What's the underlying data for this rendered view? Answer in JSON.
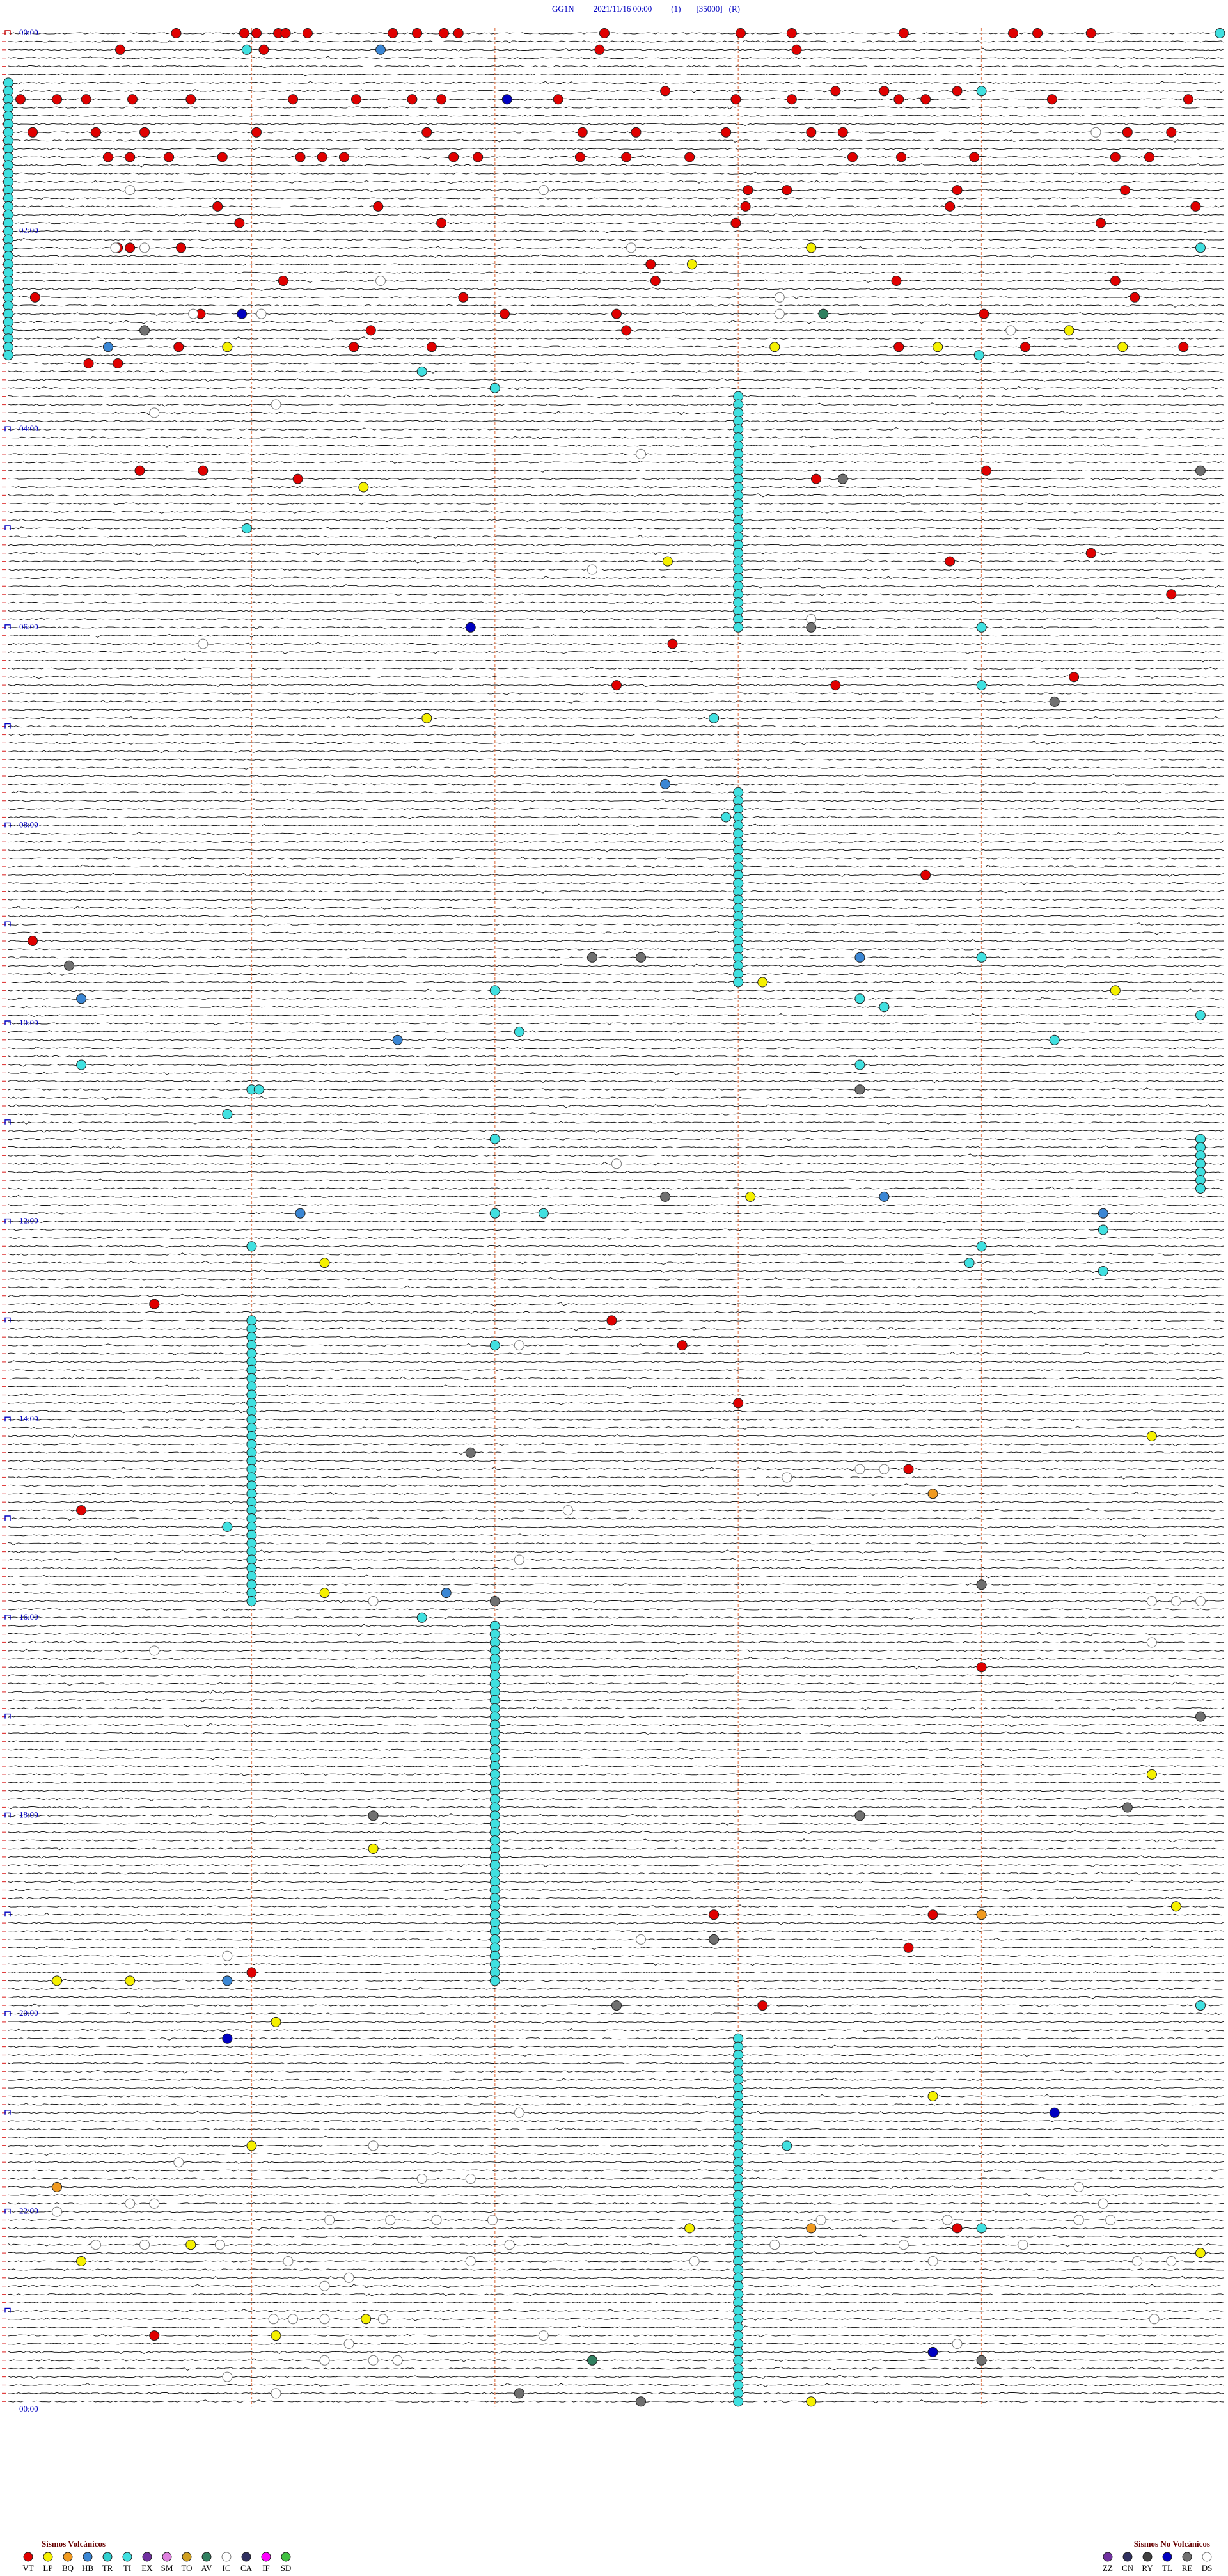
{
  "header": {
    "station": "GG1N",
    "datetime": "2021/11/16 00:00",
    "channel": "(1)",
    "scale": "[35000]",
    "mode": "(R)"
  },
  "hour_labels": [
    "00:00",
    "02:00",
    "04:00",
    "06:00",
    "08:00",
    "10:00",
    "12:00",
    "14:00",
    "16:00",
    "18:00",
    "20:00",
    "22:00",
    "00:00"
  ],
  "legend": {
    "volcanic": {
      "title": "Sismos Volcánicos",
      "items": [
        {
          "code": "VT",
          "color": "#e00000"
        },
        {
          "code": "LP",
          "color": "#f5f000"
        },
        {
          "code": "BQ",
          "color": "#f09a20"
        },
        {
          "code": "HB",
          "color": "#3a86d4"
        },
        {
          "code": "TR",
          "color": "#30d0d0"
        },
        {
          "code": "TI",
          "color": "#40e0e0"
        },
        {
          "code": "EX",
          "color": "#7030a0"
        },
        {
          "code": "SM",
          "color": "#e080e0"
        },
        {
          "code": "TO",
          "color": "#d0a020"
        },
        {
          "code": "AV",
          "color": "#308060"
        },
        {
          "code": "IC",
          "color": "#ffffff"
        },
        {
          "code": "CA",
          "color": "#303060"
        },
        {
          "code": "IF",
          "color": "#ff00ff"
        },
        {
          "code": "SD",
          "color": "#40c040"
        }
      ]
    },
    "non_volcanic": {
      "title": "Sismos No Volcánicos",
      "items": [
        {
          "code": "ZZ",
          "color": "#7030a0"
        },
        {
          "code": "CN",
          "color": "#303060"
        },
        {
          "code": "RY",
          "color": "#404040"
        },
        {
          "code": "TL",
          "color": "#0000c0"
        },
        {
          "code": "RE",
          "color": "#707070"
        },
        {
          "code": "DS",
          "color": "#ffffff"
        }
      ]
    }
  },
  "events": [
    {
      "type": "VT",
      "times": [
        0.69,
        0.97,
        1.02,
        1.11,
        1.14,
        1.23,
        1.58,
        1.68,
        1.79,
        1.85,
        2.45,
        3.01,
        3.22,
        3.68,
        4.13,
        4.23,
        4.45,
        10.46,
        11.05,
        12.43,
        13.24,
        37.7,
        38.4,
        38.6,
        38.9,
        40.05,
        40.2,
        40.32,
        40.51,
        40.75,
        41.17,
        41.43,
        41.66,
        41.78,
        42.26,
        42.99,
        43.22,
        43.66,
        43.77,
        44.29,
        44.85,
        60.1,
        60.36,
        60.56,
        61.02,
        61.72,
        62.36,
        62.58,
        62.95,
        63.3,
        63.43,
        64.6,
        64.78,
        75.41,
        75.5,
        75.66,
        75.88,
        76.2,
        76.29,
        76.38,
        76.83,
        76.93,
        77.35,
        77.54,
        77.8,
        78.47,
        78.67,
        78.97,
        79.55,
        79.69,
        98.04,
        98.2,
        98.9,
        99.59,
        105.86,
        106.52,
        108.03,
        108.87,
        109.88,
        115.95,
        116.78,
        117.99,
        119.49,
        130.45,
        130.5,
        130.71,
        142.64,
        151.13,
        152.66,
        153.65,
        154.55,
        160.11,
        161.87,
        164.63,
        170.79,
        172.04,
        172.5,
        174.01,
        181.49,
        182.54,
        190.7,
        191.42,
        191.74,
        193.66,
        194.18,
        194.83,
        200.33,
        200.45,
        265.54,
        265.8,
        269.02,
        271.19,
        273.32,
        319.45,
        323.87,
        344.78,
        372.73,
        394.38,
        397.5,
        398.4,
        513.77,
        550.1,
        770.6,
        782.48,
        797.77,
        833.0,
        873.7,
        895.3,
        994.0,
        1142.9,
        1143.8,
        1163.7,
        1176.0,
        1198.1,
        1333.9,
        1395.6
      ]
    },
    {
      "type": "LP",
      "times": [
        133.3,
        142.81,
        184.36,
        190.9,
        193.15,
        193.82,
        194.58,
        276.46,
        322.71,
        416.72,
        578.1,
        584.55,
        708.05,
        746.3,
        854.7,
        946.3,
        1059.7,
        1101.5,
        1139.8,
        1180.2,
        1180.5,
        1206.1,
        1253.8,
        1281.0,
        1332.8,
        1340.75,
        1349.9,
        1350.3,
        1386.47,
        1396.1,
        1438.3
      ]
    },
    {
      "type": "BQ",
      "times": [
        888.8,
        1144.0,
        1305.2,
        1333.3
      ]
    },
    {
      "type": "HB",
      "times": [
        11.53,
        190.41,
        457.7,
        563.5,
        585.3,
        611.6,
        708.6,
        716.2,
        719.5,
        946.8,
        1180.9,
        1281.5
      ]
    },
    {
      "type": "TL",
      "times": [
        42.05,
        170.96,
        361.9,
        1215.9,
        1264.3,
        1408.8
      ]
    },
    {
      "type": "AV",
      "times": [
        173.35,
        1412.4
      ]
    },
    {
      "type": "TI",
      "times": [
        4.98,
        10.98,
        30,
        35,
        40,
        45,
        50,
        55,
        60,
        65,
        70,
        75,
        80,
        85,
        90,
        95,
        100,
        105,
        110,
        115,
        120,
        125,
        130,
        135,
        140,
        145,
        150,
        155,
        160,
        165,
        170,
        175,
        180,
        185,
        190,
        195,
        39.0,
        134.9,
        198.99,
        206.7,
        217.0,
        223,
        228,
        233,
        238,
        243,
        248,
        253,
        258,
        263,
        268,
        273,
        278,
        283,
        288,
        293,
        298,
        303,
        308,
        313,
        318,
        323,
        328,
        333,
        338,
        343,
        348,
        353,
        358,
        363,
        300.98,
        364.0,
        399.0,
        417.9,
        463,
        468,
        473,
        478,
        483,
        488,
        493,
        498,
        503,
        508,
        513,
        518,
        523,
        528,
        533,
        538,
        543,
        548,
        553,
        558,
        563,
        568,
        573,
        578,
        477.95,
        564.0,
        582.0,
        588.5,
        593.6,
        599.9,
        607.1,
        614.3,
        625.3,
        628.5,
        641.0,
        641.03,
        655.9,
        672.0,
        674.9,
        679.9,
        684.9,
        689.9,
        694.9,
        699.9,
        704.9,
        717.0,
        717.2,
        729.5,
        736.0,
        739.0,
        748.95,
        754.5,
        797.0,
        781,
        786,
        791,
        796,
        801,
        806,
        811,
        816,
        821,
        826,
        831,
        836,
        841,
        846,
        851,
        856,
        861,
        866,
        871,
        876,
        881,
        886,
        891,
        896,
        901,
        906,
        911,
        916,
        921,
        926,
        931,
        936,
        941,
        946,
        951,
        905.9,
        961.7,
        967,
        972,
        977,
        982,
        987,
        992,
        997,
        1002,
        1007,
        1012,
        1017,
        1022,
        1027,
        1032,
        1037,
        1042,
        1047,
        1052,
        1057,
        1062,
        1067,
        1072,
        1077,
        1082,
        1087,
        1092,
        1097,
        1102,
        1107,
        1112,
        1117,
        1122,
        1127,
        1132,
        1137,
        1142,
        1147,
        1152,
        1157,
        1162,
        1167,
        1172,
        1177,
        1182,
        1199.9,
        1218,
        1223,
        1228,
        1233,
        1238,
        1243,
        1248,
        1253,
        1258,
        1263,
        1268,
        1273,
        1278,
        1283,
        1288,
        1293,
        1298,
        1303,
        1308,
        1313,
        1318,
        1323,
        1328,
        1333,
        1338,
        1343,
        1348,
        1353,
        1358,
        1363,
        1368,
        1373,
        1378,
        1383,
        1388,
        1393,
        1398,
        1403,
        1408,
        1413,
        1418,
        1423,
        1428,
        1433,
        1438,
        1283.2,
        1334.0
      ]
    },
    {
      "type": "IC",
      "times": [
        64.47,
        95.5,
        97.2,
        130.44,
        130.56,
        132.56,
        151.53,
        163.17,
        170.76,
        171.04,
        173.17,
        184.12,
        226.1,
        230.6,
        257.6,
        327.4,
        358.3,
        370.8,
        687.5,
        797.1,
        873.5,
        873.6,
        878.2,
        897.3,
        927.1,
        951.5,
        954.7,
        954.8,
        954.9,
        979.7,
        980.6,
        1157.6,
        1165.9,
        1262.1,
        1281.5,
        1290.7,
        1301.7,
        1301.9,
        1309.4,
        1315.5,
        1315.6,
        1319.5,
        1320.2,
        1326.32,
        1326.57,
        1326.76,
        1326.99,
        1328.34,
        1328.86,
        1329.4,
        1329.53,
        1340.36,
        1340.56,
        1340.87,
        1342.06,
        1343.15,
        1343.68,
        1344.17,
        1351.15,
        1351.9,
        1352.82,
        1353.8,
        1354.64,
        1354.78,
        1361.4,
        1366.3,
        1386.09,
        1386.17,
        1386.3,
        1386.54,
        1389.71,
        1397.2,
        1401.4,
        1403.9,
        1411.3,
        1411.5,
        1411.6,
        1420.9,
        1431.1
      ]
    },
    {
      "type": "RE",
      "times": [
        180.56,
        269.9,
        273.43,
        363.3,
        409.3,
        562.4,
        562.6,
        565.25,
        643.5,
        707.7,
        861.9,
        944.0,
        952.0,
        1024.9,
        1079.6,
        1081.5,
        1083.5,
        1157.9,
        1197.5,
        1414.0,
        1432.1,
        1437.6
      ]
    }
  ]
}
